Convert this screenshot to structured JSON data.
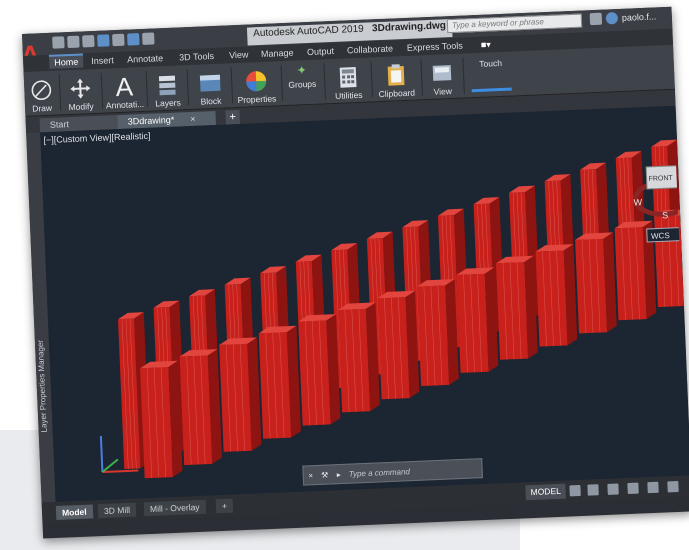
{
  "title_bar": {
    "app_title": "Autodesk AutoCAD 2019",
    "file_name": "3Ddrawing.dwg",
    "search_placeholder": "Type a keyword or phrase",
    "user_name": "paolo.f..."
  },
  "ribbon_tabs": [
    "Home",
    "Insert",
    "Annotate",
    "3D Tools",
    "View",
    "Manage",
    "Output",
    "Collaborate",
    "Express Tools"
  ],
  "ribbon_buttons": [
    "Draw",
    "Modify",
    "Annotati...",
    "Layers",
    "Block",
    "Properties",
    "Groups",
    "Utilities",
    "Clipboard",
    "View",
    "Touch"
  ],
  "document_tabs": {
    "start": "Start",
    "active": "3Ddrawing*"
  },
  "viewport": {
    "label": "[−][Custom View][Realistic]",
    "side_palette": "Layer Properties Manager",
    "viewcube_face": "FRONT",
    "viewcube_compass_w": "W",
    "viewcube_compass_s": "S",
    "wcs_label": "WCS"
  },
  "command_line": {
    "placeholder": "Type a command"
  },
  "layout_tabs": [
    "Model",
    "3D Mill",
    "Mill - Overlay"
  ],
  "status": {
    "model_button": "MODEL"
  },
  "colors": {
    "accent_red": "#c8211c",
    "viewport_bg": "#1c2532",
    "ribbon_bg": "#3f444b"
  }
}
